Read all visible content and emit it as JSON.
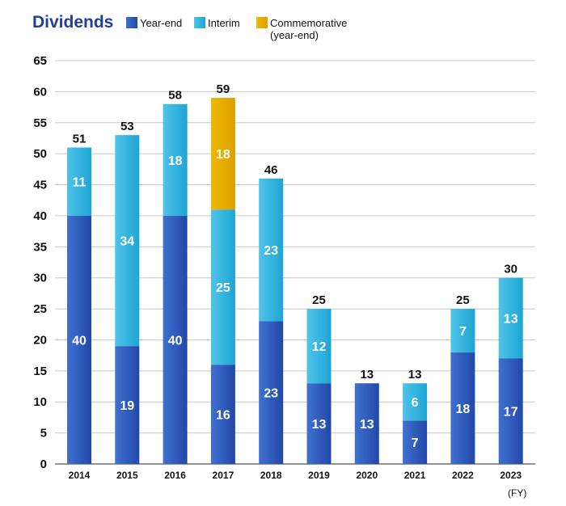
{
  "chart_data": {
    "type": "bar",
    "stacked": true,
    "title": "Dividends",
    "x_unit": "(FY)",
    "categories": [
      "2014",
      "2015",
      "2016",
      "2017",
      "2018",
      "2019",
      "2020",
      "2021",
      "2022",
      "2023"
    ],
    "series": [
      {
        "name": "Year-end",
        "color": "#2f5cbf",
        "values": [
          40,
          19,
          40,
          16,
          23,
          13,
          13,
          7,
          18,
          17
        ]
      },
      {
        "name": "Interim",
        "color": "#35b5dd",
        "values": [
          11,
          34,
          18,
          25,
          23,
          12,
          0,
          6,
          7,
          13
        ]
      },
      {
        "name": "Commemorative\n(year-end)",
        "color": "#e8ac00",
        "values": [
          0,
          0,
          0,
          18,
          0,
          0,
          0,
          0,
          0,
          0
        ]
      }
    ],
    "totals": [
      51,
      53,
      58,
      59,
      46,
      25,
      13,
      13,
      25,
      30
    ],
    "ylim": [
      0,
      65
    ],
    "yticks": [
      0,
      5,
      10,
      15,
      20,
      25,
      30,
      35,
      40,
      45,
      50,
      55,
      60,
      65
    ],
    "grid": true,
    "legend_position": "top"
  }
}
